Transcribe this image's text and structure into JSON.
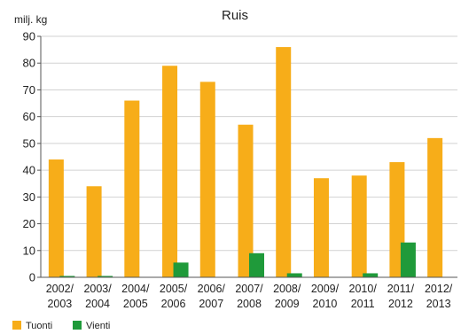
{
  "chart_data": {
    "type": "bar",
    "title": "Ruis",
    "ylabel": "milj. kg",
    "ylim": [
      0,
      90
    ],
    "yticks": [
      0,
      10,
      20,
      30,
      40,
      50,
      60,
      70,
      80,
      90
    ],
    "grid": true,
    "legend_position": "bottom-left",
    "categories": [
      [
        "2002/",
        "2003"
      ],
      [
        "2003/",
        "2004"
      ],
      [
        "2004/",
        "2005"
      ],
      [
        "2005/",
        "2006"
      ],
      [
        "2006/",
        "2007"
      ],
      [
        "2007/",
        "2008"
      ],
      [
        "2008/",
        "2009"
      ],
      [
        "2009/",
        "2010"
      ],
      [
        "2010/",
        "2011"
      ],
      [
        "2011/",
        "2012"
      ],
      [
        "2012/",
        "2013"
      ]
    ],
    "series": [
      {
        "name": "Tuonti",
        "color": "#f7ad19",
        "values": [
          44,
          34,
          66,
          79,
          73,
          57,
          86,
          37,
          38,
          43,
          52
        ]
      },
      {
        "name": "Vienti",
        "color": "#1f9a3a",
        "values": [
          0.5,
          0.5,
          0,
          5.5,
          0,
          9,
          1.5,
          0,
          1.5,
          13,
          0
        ]
      }
    ]
  }
}
